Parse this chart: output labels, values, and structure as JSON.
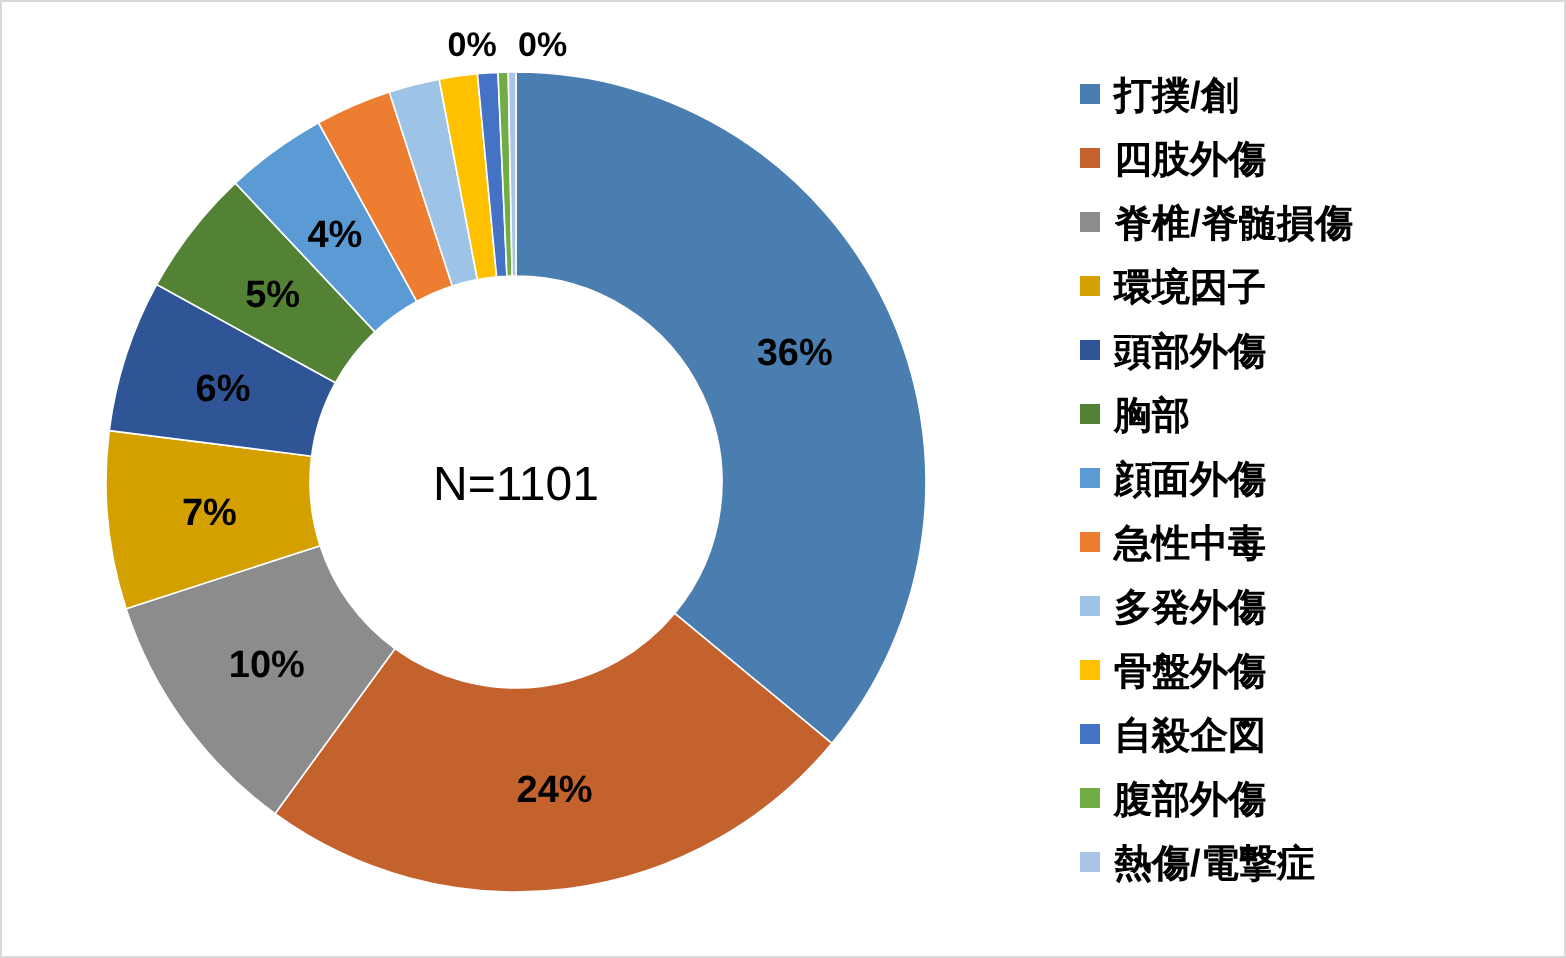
{
  "chart_data": {
    "type": "donut",
    "categories": [
      "打撲/創",
      "四肢外傷",
      "脊椎/脊髄損傷",
      "環境因子",
      "頭部外傷",
      "胸部",
      "顔面外傷",
      "急性中毒",
      "多発外傷",
      "骨盤外傷",
      "自殺企図",
      "腹部外傷",
      "熱傷/電撃症"
    ],
    "values": [
      36,
      24,
      10,
      7,
      6,
      5,
      4,
      3,
      2,
      1.5,
      0.8,
      0.4,
      0.3
    ],
    "colors": [
      "#4a7eb0",
      "#c4622d",
      "#8c8c8c",
      "#d4a000",
      "#2f5597",
      "#548235",
      "#5b9bd5",
      "#ed7d31",
      "#9dc3e6",
      "#ffc000",
      "#4472c4",
      "#70ad47",
      "#a9c4e6"
    ],
    "value_labels": [
      "36%",
      "24%",
      "10%",
      "7%",
      "6%",
      "5%",
      "4%",
      null,
      null,
      null,
      null,
      "0%",
      "0%"
    ],
    "annotations": [
      "N=1101"
    ],
    "legend": "right"
  }
}
